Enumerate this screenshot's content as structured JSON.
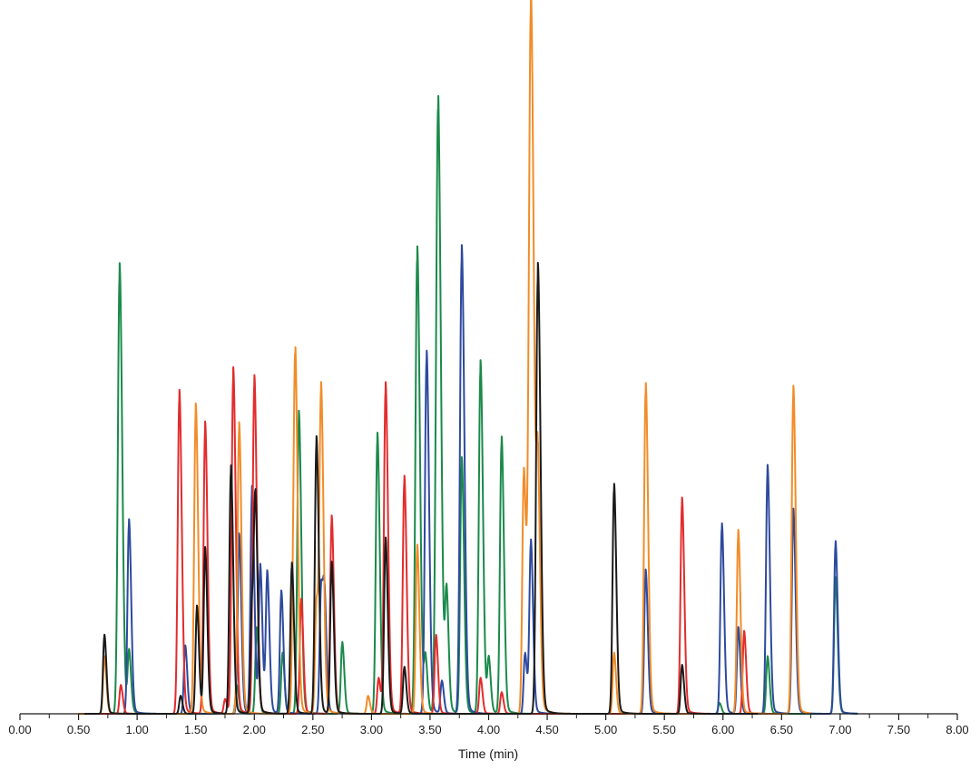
{
  "chart_data": {
    "type": "line",
    "title": "",
    "xlabel": "Time (min)",
    "ylabel": "",
    "xlim": [
      0.0,
      8.0
    ],
    "ylim": [
      0,
      100
    ],
    "x_tick_labels": [
      "0.00",
      "0.50",
      "1.00",
      "1.50",
      "2.00",
      "2.50",
      "3.00",
      "3.50",
      "4.00",
      "4.50",
      "5.00",
      "5.50",
      "6.00",
      "6.50",
      "7.00",
      "7.50",
      "8.00"
    ],
    "grid": false,
    "legend": "none",
    "series": [
      {
        "name": "green",
        "color": "#1a8a4a",
        "range": [
          0.55,
          7.15
        ],
        "peaks": [
          {
            "t": 0.85,
            "h": 62.5
          },
          {
            "t": 0.93,
            "h": 8.5
          },
          {
            "t": 1.85,
            "h": 4.0
          },
          {
            "t": 2.02,
            "h": 12.0
          },
          {
            "t": 2.24,
            "h": 8.5
          },
          {
            "t": 2.38,
            "h": 42.0
          },
          {
            "t": 2.75,
            "h": 10.0
          },
          {
            "t": 3.05,
            "h": 39.0
          },
          {
            "t": 3.39,
            "h": 65.0
          },
          {
            "t": 3.46,
            "h": 7.5
          },
          {
            "t": 3.55,
            "h": 15.5
          },
          {
            "t": 3.57,
            "h": 77.5
          },
          {
            "t": 3.64,
            "h": 16.5
          },
          {
            "t": 3.77,
            "h": 35.5
          },
          {
            "t": 3.93,
            "h": 49.0
          },
          {
            "t": 4.0,
            "h": 7.5
          },
          {
            "t": 4.11,
            "h": 38.5
          },
          {
            "t": 5.97,
            "h": 1.5
          },
          {
            "t": 6.38,
            "h": 8.0
          },
          {
            "t": 6.96,
            "h": 19.0
          }
        ]
      },
      {
        "name": "blue",
        "color": "#2d4a9e",
        "range": [
          0.55,
          7.15
        ],
        "peaks": [
          {
            "t": 0.93,
            "h": 27.0
          },
          {
            "t": 1.41,
            "h": 9.5
          },
          {
            "t": 1.87,
            "h": 25.0
          },
          {
            "t": 1.98,
            "h": 31.5
          },
          {
            "t": 2.05,
            "h": 20.5
          },
          {
            "t": 2.11,
            "h": 19.5
          },
          {
            "t": 2.23,
            "h": 17.0
          },
          {
            "t": 2.57,
            "h": 18.0
          },
          {
            "t": 2.6,
            "h": 13.5
          },
          {
            "t": 3.47,
            "h": 50.5
          },
          {
            "t": 3.6,
            "h": 4.5
          },
          {
            "t": 3.77,
            "h": 65.0
          },
          {
            "t": 4.31,
            "h": 8.5
          },
          {
            "t": 4.36,
            "h": 24.0
          },
          {
            "t": 5.34,
            "h": 20.0
          },
          {
            "t": 5.99,
            "h": 26.5
          },
          {
            "t": 6.13,
            "h": 12.0
          },
          {
            "t": 6.38,
            "h": 34.5
          },
          {
            "t": 6.6,
            "h": 28.5
          },
          {
            "t": 6.96,
            "h": 24.0
          }
        ]
      },
      {
        "name": "red",
        "color": "#e32c2c",
        "range": [
          0.55,
          6.4
        ],
        "peaks": [
          {
            "t": 0.86,
            "h": 4.0
          },
          {
            "t": 1.36,
            "h": 45.0
          },
          {
            "t": 1.58,
            "h": 40.5
          },
          {
            "t": 1.75,
            "h": 2.0
          },
          {
            "t": 1.82,
            "h": 48.0
          },
          {
            "t": 2.0,
            "h": 47.0
          },
          {
            "t": 2.4,
            "h": 16.0
          },
          {
            "t": 2.66,
            "h": 27.5
          },
          {
            "t": 3.06,
            "h": 5.0
          },
          {
            "t": 3.12,
            "h": 46.0
          },
          {
            "t": 3.28,
            "h": 33.0
          },
          {
            "t": 3.55,
            "h": 11.0
          },
          {
            "t": 3.93,
            "h": 5.0
          },
          {
            "t": 4.11,
            "h": 3.0
          },
          {
            "t": 5.65,
            "h": 30.0
          },
          {
            "t": 6.18,
            "h": 11.5
          }
        ]
      },
      {
        "name": "orange",
        "color": "#f28c28",
        "range": [
          0.5,
          6.75
        ],
        "peaks": [
          {
            "t": 0.72,
            "h": 8.0
          },
          {
            "t": 1.5,
            "h": 43.0
          },
          {
            "t": 1.87,
            "h": 40.5
          },
          {
            "t": 2.33,
            "h": 10.0
          },
          {
            "t": 2.35,
            "h": 46.0
          },
          {
            "t": 2.53,
            "h": 15.5
          },
          {
            "t": 2.57,
            "h": 44.5
          },
          {
            "t": 2.97,
            "h": 2.5
          },
          {
            "t": 3.39,
            "h": 23.5
          },
          {
            "t": 4.3,
            "h": 34.0
          },
          {
            "t": 4.36,
            "h": 100.0
          },
          {
            "t": 4.42,
            "h": 31.0
          },
          {
            "t": 5.07,
            "h": 8.5
          },
          {
            "t": 5.34,
            "h": 46.0
          },
          {
            "t": 6.13,
            "h": 25.5
          },
          {
            "t": 6.6,
            "h": 45.5
          }
        ]
      },
      {
        "name": "black",
        "color": "#1a1a1a",
        "range": [
          0.55,
          6.3
        ],
        "peaks": [
          {
            "t": 0.72,
            "h": 11.0
          },
          {
            "t": 1.37,
            "h": 2.5
          },
          {
            "t": 1.51,
            "h": 15.0
          },
          {
            "t": 1.58,
            "h": 23.0
          },
          {
            "t": 1.8,
            "h": 34.5
          },
          {
            "t": 1.98,
            "h": 15.0
          },
          {
            "t": 2.01,
            "h": 27.5
          },
          {
            "t": 2.32,
            "h": 21.0
          },
          {
            "t": 2.53,
            "h": 38.5
          },
          {
            "t": 2.66,
            "h": 21.0
          },
          {
            "t": 3.12,
            "h": 24.5
          },
          {
            "t": 3.28,
            "h": 6.5
          },
          {
            "t": 4.42,
            "h": 62.5
          },
          {
            "t": 5.07,
            "h": 32.0
          },
          {
            "t": 5.65,
            "h": 6.8
          }
        ]
      }
    ]
  }
}
